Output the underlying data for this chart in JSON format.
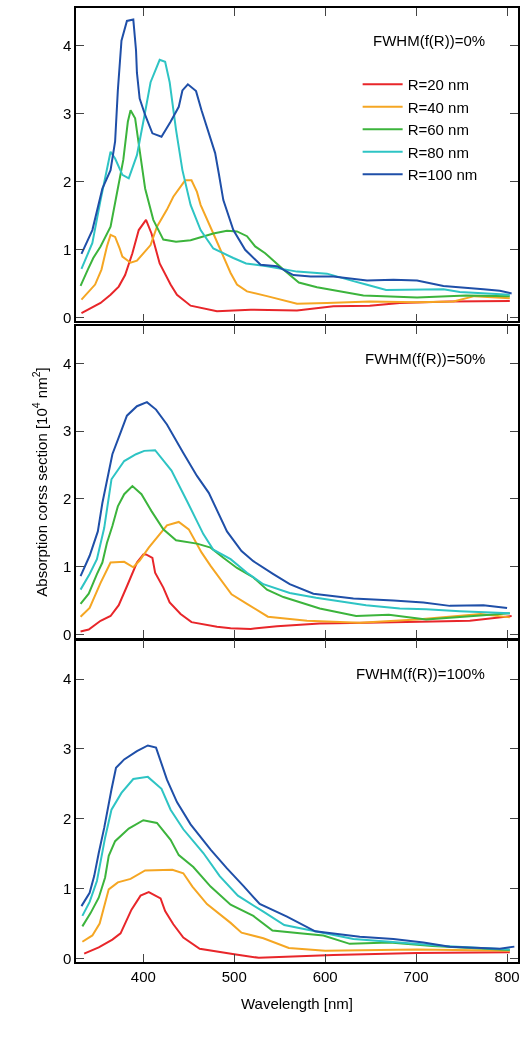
{
  "chart_data": [
    {
      "type": "line",
      "annotations": [
        "FWHM(f(R))=0%"
      ],
      "xlim": [
        326,
        812
      ],
      "xticks": [
        400,
        500,
        600,
        700,
        800
      ],
      "ylim": [
        -0.05,
        4.55
      ],
      "yticks": [
        0,
        1,
        2,
        3,
        4
      ],
      "tick_labels": "y",
      "legend": "top right",
      "grid": false,
      "marker": "none",
      "line_style": "solid",
      "series": [
        {
          "name": "R=20 nm",
          "color": "#e8262a",
          "x": [
            332,
            353,
            364,
            373,
            380,
            388,
            395,
            403,
            409,
            418,
            430,
            437,
            452,
            481,
            518,
            569,
            609,
            649,
            682,
            737,
            803
          ],
          "values": [
            0.07,
            0.22,
            0.34,
            0.46,
            0.63,
            0.95,
            1.29,
            1.44,
            1.24,
            0.8,
            0.49,
            0.34,
            0.18,
            0.1,
            0.12,
            0.11,
            0.17,
            0.18,
            0.22,
            0.24,
            0.25
          ]
        },
        {
          "name": "R=40 nm",
          "color": "#f5a623",
          "x": [
            332,
            347,
            354,
            360,
            364,
            369,
            374,
            377,
            386,
            393,
            408,
            415,
            426,
            433,
            446,
            453,
            459,
            463,
            477,
            496,
            503,
            514,
            536,
            569,
            602,
            649,
            701,
            741,
            764,
            803
          ],
          "values": [
            0.27,
            0.49,
            0.71,
            1.05,
            1.22,
            1.19,
            1.02,
            0.9,
            0.81,
            0.84,
            1.07,
            1.34,
            1.59,
            1.78,
            2.02,
            2.02,
            1.85,
            1.66,
            1.24,
            0.66,
            0.49,
            0.39,
            0.32,
            0.21,
            0.22,
            0.24,
            0.23,
            0.24,
            0.32,
            0.29
          ]
        },
        {
          "name": "R=60 nm",
          "color": "#3cb43c",
          "x": [
            331,
            339,
            345,
            353,
            364,
            370,
            378,
            383,
            386,
            391,
            396,
            402,
            411,
            422,
            436,
            452,
            477,
            492,
            503,
            514,
            523,
            534,
            554,
            571,
            591,
            642,
            701,
            755,
            803
          ],
          "values": [
            0.47,
            0.71,
            0.88,
            1.05,
            1.34,
            1.76,
            2.32,
            2.88,
            3.05,
            2.93,
            2.46,
            1.9,
            1.44,
            1.15,
            1.12,
            1.14,
            1.24,
            1.28,
            1.27,
            1.2,
            1.05,
            0.95,
            0.71,
            0.52,
            0.45,
            0.33,
            0.3,
            0.33,
            0.32
          ]
        },
        {
          "name": "R=80 nm",
          "color": "#2ec4c4",
          "x": [
            332,
            344,
            353,
            364,
            369,
            377,
            384,
            393,
            401,
            408,
            418,
            424,
            429,
            436,
            443,
            452,
            463,
            477,
            499,
            513,
            536,
            569,
            602,
            631,
            645,
            667,
            730,
            748,
            803
          ],
          "values": [
            0.72,
            1.1,
            1.73,
            2.44,
            2.34,
            2.1,
            2.05,
            2.39,
            2.95,
            3.46,
            3.79,
            3.76,
            3.46,
            2.76,
            2.17,
            1.66,
            1.29,
            1.02,
            0.88,
            0.8,
            0.76,
            0.68,
            0.65,
            0.54,
            0.49,
            0.41,
            0.42,
            0.38,
            0.34
          ]
        },
        {
          "name": "R=100 nm",
          "color": "#1f4fa8",
          "x": [
            332,
            344,
            355,
            364,
            369,
            372,
            376,
            382,
            389,
            392,
            393,
            396,
            402,
            410,
            420,
            430,
            439,
            443,
            449,
            458,
            464,
            479,
            483,
            488,
            499,
            512,
            529,
            547,
            565,
            584,
            609,
            646,
            675,
            701,
            730,
            774,
            792,
            805
          ],
          "values": [
            0.94,
            1.29,
            1.9,
            2.17,
            2.59,
            3.34,
            4.07,
            4.36,
            4.38,
            3.93,
            3.6,
            3.22,
            2.98,
            2.71,
            2.66,
            2.88,
            3.1,
            3.34,
            3.43,
            3.33,
            3.05,
            2.42,
            2.12,
            1.73,
            1.29,
            1.0,
            0.78,
            0.76,
            0.63,
            0.61,
            0.61,
            0.55,
            0.56,
            0.55,
            0.47,
            0.42,
            0.4,
            0.36
          ]
        }
      ]
    },
    {
      "type": "line",
      "annotations": [
        "FWHM(f(R))=50%"
      ],
      "ylabel": "Absorption corss section [10$^{4}$ nm$^{2}$]",
      "xlim": [
        326,
        812
      ],
      "xticks": [
        400,
        500,
        600,
        700,
        800
      ],
      "ylim": [
        -0.05,
        4.55
      ],
      "yticks": [
        0,
        1,
        2,
        3,
        4
      ],
      "tick_labels": "y",
      "grid": false,
      "marker": "none",
      "line_style": "solid",
      "series": [
        {
          "color": "#e8262a",
          "x": [
            331,
            340,
            353,
            364,
            373,
            382,
            393,
            400,
            403,
            410,
            413,
            422,
            429,
            441,
            453,
            481,
            496,
            518,
            547,
            594,
            645,
            718,
            759,
            805
          ],
          "values": [
            0.04,
            0.07,
            0.2,
            0.27,
            0.43,
            0.71,
            1.06,
            1.18,
            1.18,
            1.13,
            0.91,
            0.69,
            0.47,
            0.3,
            0.18,
            0.11,
            0.09,
            0.08,
            0.12,
            0.16,
            0.17,
            0.19,
            0.2,
            0.27
          ]
        },
        {
          "color": "#f5a623",
          "x": [
            331,
            341,
            353,
            364,
            379,
            389,
            396,
            406,
            426,
            439,
            450,
            464,
            474,
            497,
            514,
            537,
            580,
            638,
            701,
            771,
            803
          ],
          "values": [
            0.26,
            0.39,
            0.76,
            1.06,
            1.07,
            0.99,
            1.09,
            1.28,
            1.61,
            1.66,
            1.55,
            1.21,
            1.01,
            0.59,
            0.45,
            0.26,
            0.2,
            0.17,
            0.22,
            0.3,
            0.25
          ]
        },
        {
          "color": "#3cb43c",
          "x": [
            331,
            340,
            349,
            355,
            360,
            366,
            372,
            379,
            388,
            398,
            409,
            422,
            436,
            459,
            474,
            488,
            503,
            521,
            536,
            554,
            594,
            634,
            670,
            711,
            763,
            803
          ],
          "values": [
            0.45,
            0.6,
            0.89,
            1.06,
            1.35,
            1.6,
            1.89,
            2.07,
            2.19,
            2.07,
            1.82,
            1.55,
            1.39,
            1.34,
            1.28,
            1.13,
            0.98,
            0.84,
            0.66,
            0.55,
            0.38,
            0.27,
            0.29,
            0.22,
            0.27,
            0.31
          ]
        },
        {
          "color": "#2ec4c4",
          "x": [
            331,
            341,
            349,
            357,
            365,
            379,
            392,
            401,
            413,
            431,
            448,
            466,
            477,
            496,
            514,
            532,
            561,
            590,
            645,
            682,
            711,
            748,
            803
          ],
          "values": [
            0.66,
            0.89,
            1.11,
            1.57,
            2.29,
            2.56,
            2.66,
            2.71,
            2.72,
            2.42,
            1.97,
            1.48,
            1.25,
            1.11,
            0.91,
            0.74,
            0.61,
            0.54,
            0.43,
            0.38,
            0.37,
            0.34,
            0.31
          ]
        },
        {
          "color": "#1f4fa8",
          "x": [
            331,
            341,
            350,
            355,
            366,
            375,
            382,
            393,
            404,
            414,
            426,
            444,
            459,
            472,
            492,
            508,
            521,
            543,
            561,
            587,
            631,
            675,
            708,
            737,
            774,
            800
          ],
          "values": [
            0.86,
            1.16,
            1.52,
            1.94,
            2.66,
            2.98,
            3.23,
            3.37,
            3.43,
            3.32,
            3.1,
            2.68,
            2.34,
            2.09,
            1.52,
            1.23,
            1.08,
            0.89,
            0.74,
            0.6,
            0.53,
            0.5,
            0.47,
            0.42,
            0.43,
            0.39
          ]
        }
      ]
    },
    {
      "type": "line",
      "annotations": [
        "FWHM(f(R))=100%"
      ],
      "xlabel": "Wavelength [nm]",
      "xlim": [
        326,
        812
      ],
      "xticks": [
        400,
        500,
        600,
        700,
        800
      ],
      "ylim": [
        -0.05,
        4.55
      ],
      "yticks": [
        0,
        1,
        2,
        3,
        4
      ],
      "grid": false,
      "marker": "none",
      "line_style": "solid",
      "series": [
        {
          "color": "#e8262a",
          "x": [
            335,
            351,
            366,
            375,
            387,
            397,
            406,
            419,
            424,
            433,
            444,
            462,
            500,
            527,
            609,
            701,
            803
          ],
          "values": [
            0.07,
            0.16,
            0.27,
            0.36,
            0.7,
            0.9,
            0.95,
            0.86,
            0.68,
            0.49,
            0.3,
            0.14,
            0.06,
            0.01,
            0.05,
            0.08,
            0.09
          ]
        },
        {
          "color": "#f5a623",
          "x": [
            333,
            344,
            352,
            362,
            372,
            386,
            402,
            432,
            444,
            454,
            470,
            496,
            508,
            532,
            560,
            600,
            701,
            803
          ],
          "values": [
            0.24,
            0.33,
            0.5,
            0.99,
            1.09,
            1.14,
            1.26,
            1.27,
            1.22,
            1.03,
            0.78,
            0.51,
            0.37,
            0.29,
            0.15,
            0.11,
            0.13,
            0.11
          ]
        },
        {
          "color": "#3cb43c",
          "x": [
            333,
            342,
            351,
            358,
            362,
            369,
            384,
            400,
            415,
            430,
            439,
            455,
            474,
            496,
            521,
            542,
            572,
            598,
            627,
            671,
            718,
            803
          ],
          "values": [
            0.46,
            0.65,
            0.87,
            1.16,
            1.47,
            1.68,
            1.86,
            1.98,
            1.94,
            1.7,
            1.48,
            1.31,
            1.03,
            0.77,
            0.61,
            0.4,
            0.36,
            0.33,
            0.21,
            0.23,
            0.18,
            0.12
          ]
        },
        {
          "color": "#2ec4c4",
          "x": [
            333,
            341,
            349,
            358,
            365,
            376,
            389,
            405,
            420,
            430,
            444,
            466,
            484,
            504,
            532,
            555,
            589,
            631,
            671,
            730,
            803
          ],
          "values": [
            0.61,
            0.81,
            1.11,
            1.73,
            2.13,
            2.37,
            2.57,
            2.6,
            2.43,
            2.13,
            1.85,
            1.51,
            1.18,
            0.9,
            0.67,
            0.48,
            0.39,
            0.28,
            0.24,
            0.18,
            0.13
          ]
        },
        {
          "color": "#1f4fa8",
          "x": [
            332,
            341,
            346,
            351,
            357,
            365,
            370,
            379,
            393,
            405,
            414,
            426,
            437,
            452,
            474,
            492,
            510,
            528,
            558,
            589,
            638,
            675,
            708,
            737,
            792,
            808
          ],
          "values": [
            0.75,
            0.94,
            1.18,
            1.51,
            1.87,
            2.42,
            2.73,
            2.85,
            2.97,
            3.05,
            3.02,
            2.56,
            2.24,
            1.92,
            1.56,
            1.29,
            1.04,
            0.78,
            0.6,
            0.39,
            0.31,
            0.28,
            0.23,
            0.17,
            0.14,
            0.17
          ]
        }
      ]
    }
  ]
}
